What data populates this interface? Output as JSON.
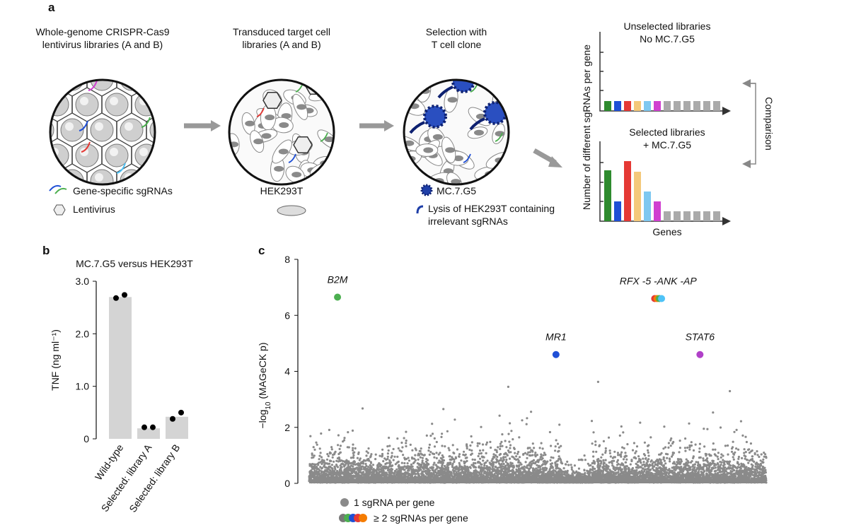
{
  "figure": {
    "panel_labels": [
      "a",
      "b",
      "c"
    ],
    "step1": [
      "Whole-genome CRISPR-Cas9",
      "lentivirus libraries (A and B)"
    ],
    "step2": [
      "Transduced target cell",
      "libraries (A and B)"
    ],
    "step3": [
      "Selection with",
      "T cell clone"
    ],
    "legend1": [
      "Gene-specific sgRNAs",
      "Lentivirus"
    ],
    "cell_line": "HEK293T",
    "legend3": [
      "MC.7.G5",
      "Lysis of HEK293T containing",
      "irrelevant sgRNAs"
    ],
    "unselected": [
      "Unselected libraries",
      "No MC.7.G5"
    ],
    "selected": [
      "Selected libraries",
      "+ MC.7.G5"
    ],
    "mini_ylabel": "Number of different sgRNAs per gene",
    "mini_xlabel": "Genes",
    "comparison": "Comparison"
  },
  "chart_data": [
    {
      "type": "bar",
      "title": "MC.7.G5 versus HEK293T",
      "ylabel": "TNF (ng ml⁻¹)",
      "categories": [
        "Wild-type",
        "Selected: library A",
        "Selected: library B"
      ],
      "values": [
        2.7,
        0.2,
        0.42
      ],
      "color": "#d4d4d4",
      "points": [
        [
          2.68,
          2.74
        ],
        [
          0.22,
          0.22
        ],
        [
          0.38,
          0.5
        ]
      ],
      "point_color": "#000000",
      "ylim": [
        0,
        3
      ],
      "yticks": [
        0,
        {
          "value": 1,
          "label": "1.0"
        },
        {
          "value": 2,
          "label": "2.0"
        },
        {
          "value": 3,
          "label": "3.0"
        }
      ]
    },
    {
      "type": "scatter",
      "ylabel": [
        "−log",
        "10",
        " (MAGeCK p)"
      ],
      "xlim": [
        0,
        100
      ],
      "ylim": [
        0,
        8
      ],
      "yticks": [
        0,
        2,
        4,
        6,
        8
      ],
      "background_color": "#8a8a8a",
      "series": [
        {
          "name": "B2M",
          "color": "#4caf50",
          "x": [
            6.2
          ],
          "values": [
            6.65
          ]
        },
        {
          "name": "MR1",
          "color": "#1f4fd6",
          "x": [
            54
          ],
          "values": [
            4.6
          ]
        },
        {
          "name": "RFX -5 -ANK -AP",
          "color": "#e53935",
          "x": [
            75.6,
            76.1,
            76.6,
            77.1
          ],
          "values": [
            6.6,
            6.6,
            6.6,
            6.6
          ],
          "colors": [
            "#e53935",
            "#f57c00",
            "#4caf50",
            "#4fc3f7"
          ]
        },
        {
          "name": "STAT6",
          "color": "#b040c8",
          "x": [
            85.5
          ],
          "values": [
            4.6
          ]
        }
      ],
      "legend": [
        "1 sgRNA per gene",
        "≥ 2 sgRNAs per gene"
      ]
    }
  ]
}
